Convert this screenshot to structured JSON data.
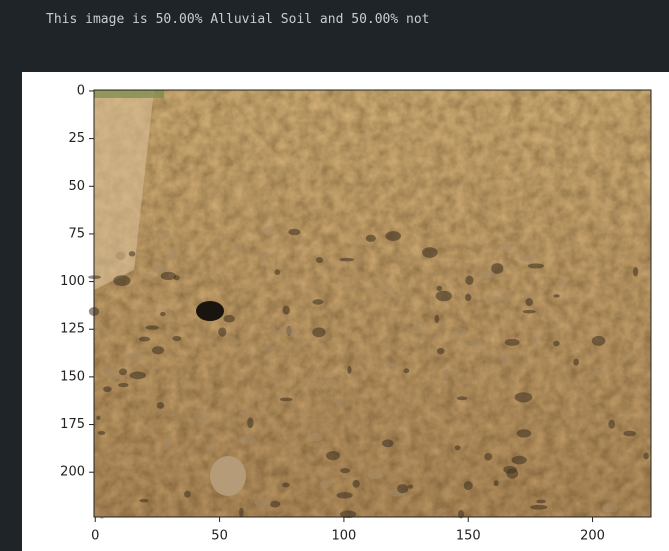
{
  "output_text": "This image is 50.00% Alluvial Soil and 50.00% not",
  "chart_data": {
    "type": "image",
    "xlim": [
      -0.5,
      223.5
    ],
    "ylim": [
      223.5,
      -0.5
    ],
    "xticks": [
      0,
      50,
      100,
      150,
      200
    ],
    "yticks": [
      0,
      25,
      50,
      75,
      100,
      125,
      150,
      175,
      200
    ]
  }
}
